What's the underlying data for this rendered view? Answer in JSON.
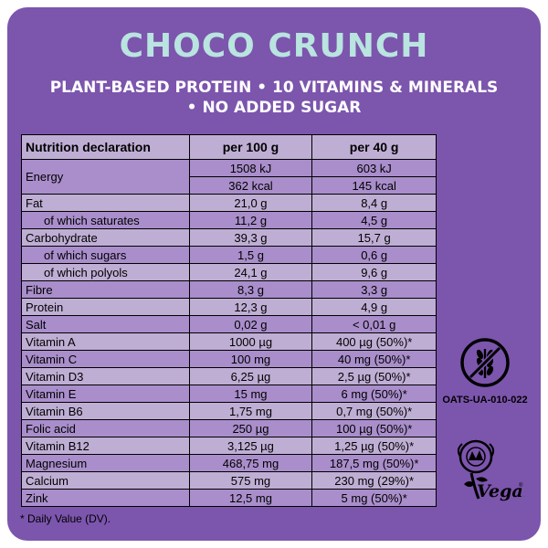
{
  "brand": "CHOCO CRUNCH",
  "tagline_line1": "PLANT-BASED PROTEIN • 10 VITAMINS & MINERALS",
  "tagline_line2": "• NO ADDED SUGAR",
  "table": {
    "headers": [
      "Nutrition declaration",
      "per 100 g",
      "per 40 g"
    ],
    "energy": {
      "label": "Energy",
      "kj_100": "1508 kJ",
      "kj_40": "603 kJ",
      "kcal_100": "362 kcal",
      "kcal_40": "145 kcal"
    },
    "rows": [
      {
        "label": "Fat",
        "v100": "21,0 g",
        "v40": "8,4 g"
      },
      {
        "label": "of which saturates",
        "v100": "11,2 g",
        "v40": "4,5 g"
      },
      {
        "label": "Carbohydrate",
        "v100": "39,3 g",
        "v40": "15,7 g"
      },
      {
        "label": "of which sugars",
        "v100": "1,5 g",
        "v40": "0,6 g"
      },
      {
        "label": "of which polyols",
        "v100": "24,1 g",
        "v40": "9,6 g"
      },
      {
        "label": "Fibre",
        "v100": "8,3 g",
        "v40": "3,3 g"
      },
      {
        "label": "Protein",
        "v100": "12,3 g",
        "v40": "4,9 g"
      },
      {
        "label": "Salt",
        "v100": "0,02 g",
        "v40": "< 0,01 g"
      },
      {
        "label": "Vitamin A",
        "v100": "1000 µg",
        "v40": "400 µg (50%)*"
      },
      {
        "label": "Vitamin C",
        "v100": "100 mg",
        "v40": "40 mg (50%)*"
      },
      {
        "label": "Vitamin D3",
        "v100": "6,25 µg",
        "v40": "2,5 µg (50%)*"
      },
      {
        "label": "Vitamin E",
        "v100": "15 mg",
        "v40": "6 mg (50%)*"
      },
      {
        "label": "Vitamin B6",
        "v100": "1,75 mg",
        "v40": "0,7 mg (50%)*"
      },
      {
        "label": "Folic acid",
        "v100": "250 µg",
        "v40": "100 µg (50%)*"
      },
      {
        "label": "Vitamin B12",
        "v100": "3,125 µg",
        "v40": "1,25 µg (50%)*"
      },
      {
        "label": "Magnesium",
        "v100": "468,75 mg",
        "v40": "187,5 mg (50%)*"
      },
      {
        "label": "Calcium",
        "v100": "575 mg",
        "v40": "230 mg (29%)*"
      },
      {
        "label": "Zink",
        "v100": "12,5 mg",
        "v40": "5 mg (50%)*"
      }
    ]
  },
  "footnote": "* Daily Value (DV).",
  "gluten_free_code": "OATS-UA-010-022",
  "vegan_label": "Vegan",
  "colors": {
    "panel": "#7c55ad",
    "brand": "#b9e4df",
    "row_dark": "#bfaed4",
    "row_light": "#a98ecb"
  }
}
